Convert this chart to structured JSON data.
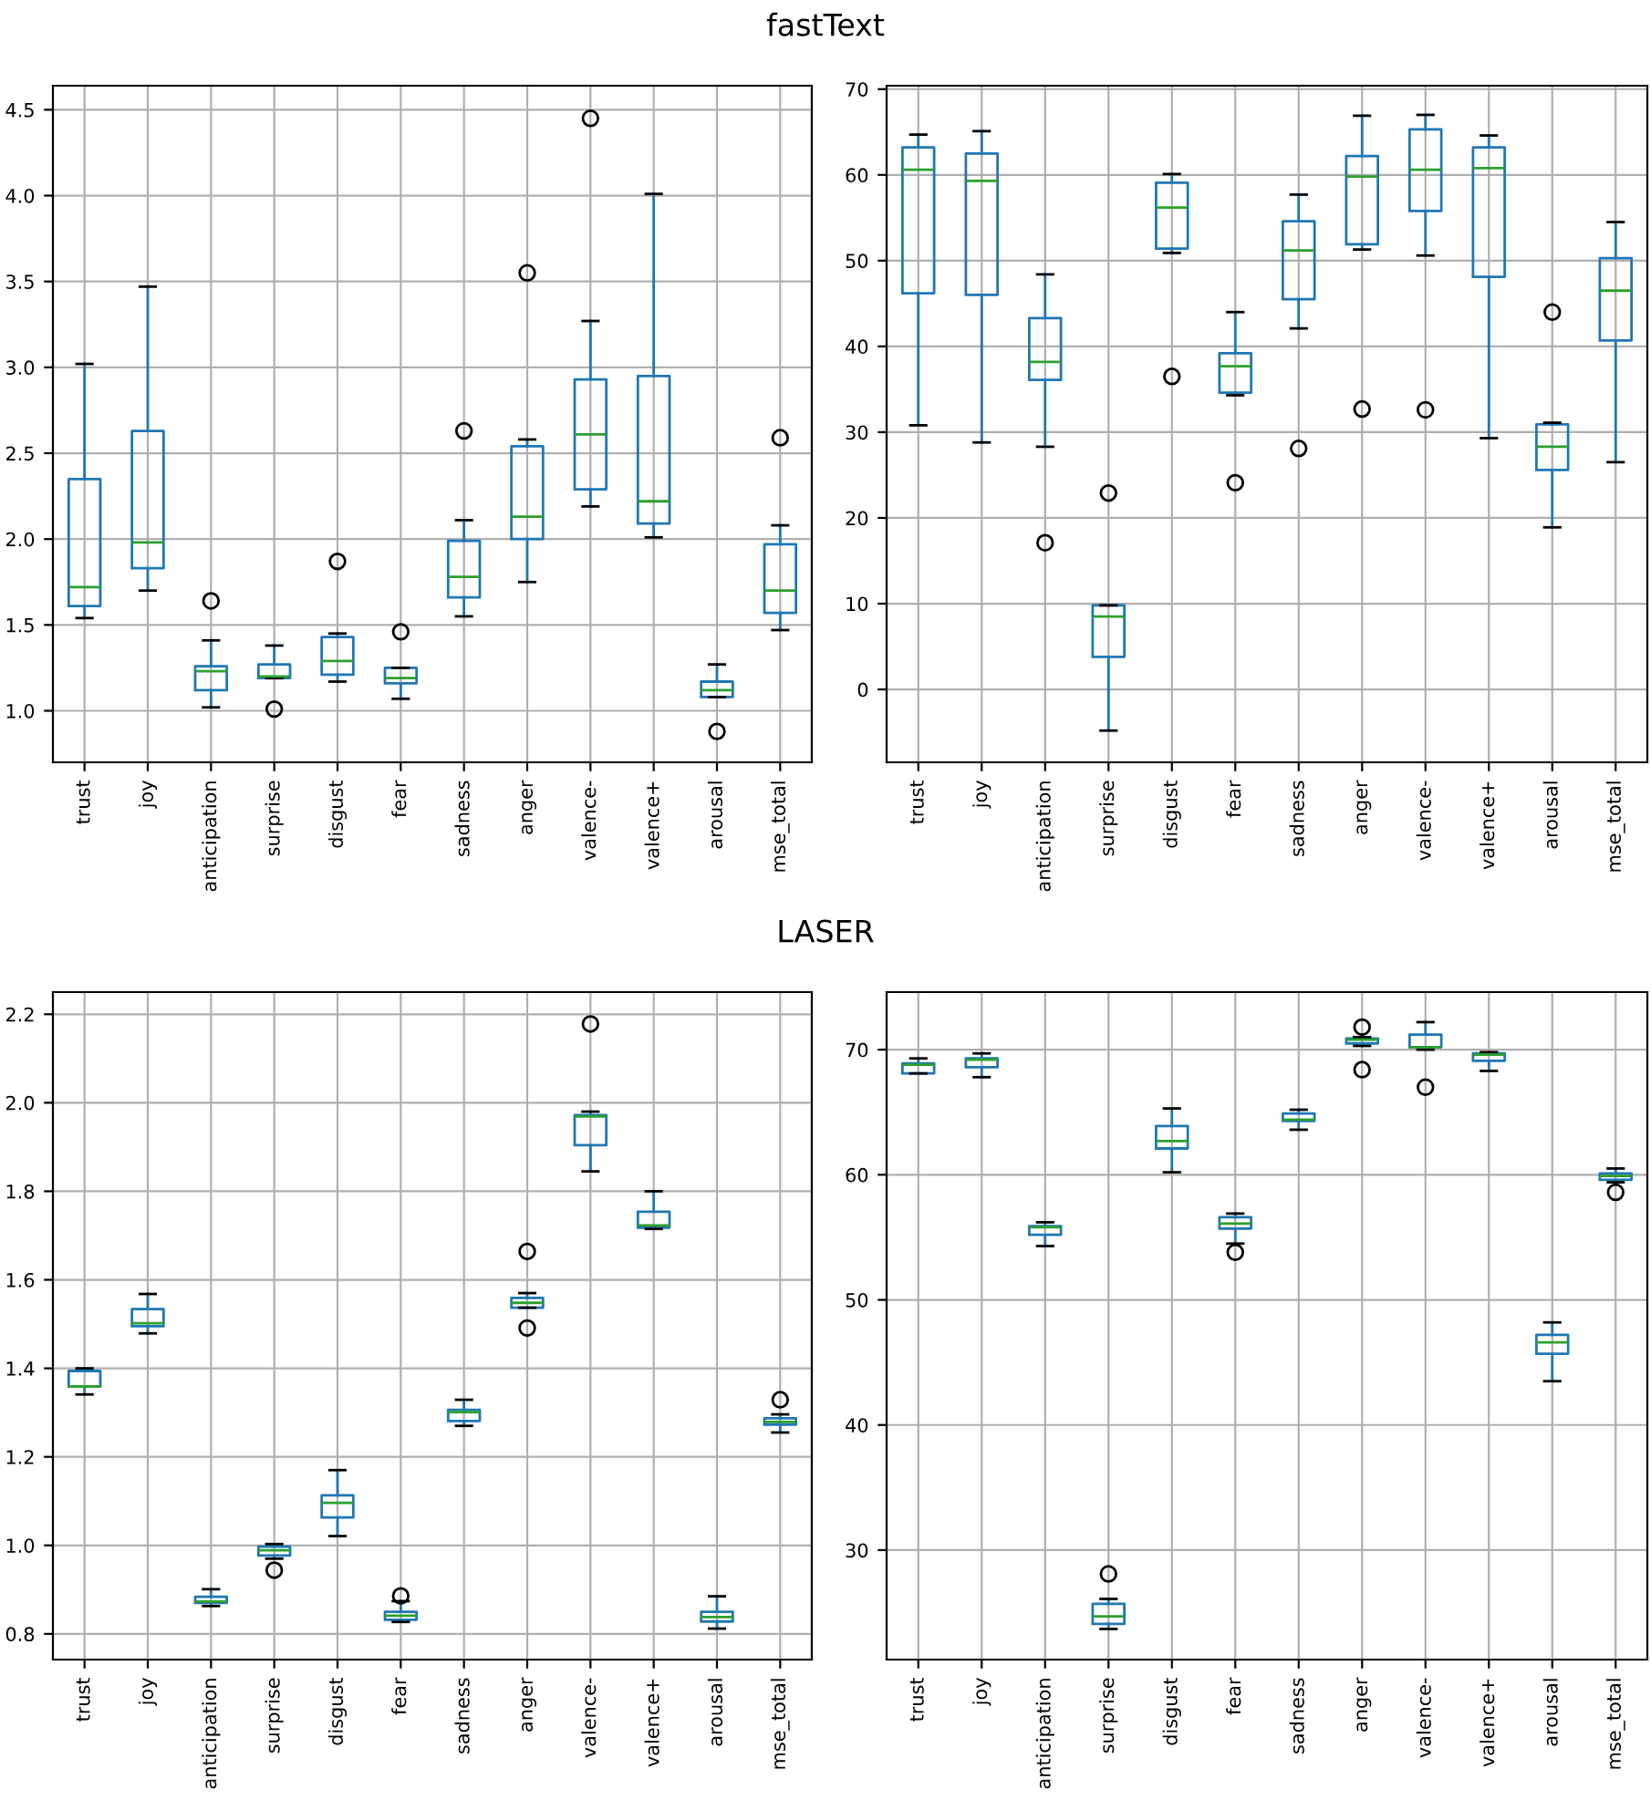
{
  "chart_data": [
    {
      "type": "box",
      "title": "fastText",
      "categories": [
        "trust",
        "joy",
        "anticipation",
        "surprise",
        "disgust",
        "fear",
        "sadness",
        "anger",
        "valence-",
        "valence+",
        "arousal",
        "mse_total"
      ],
      "ylim": [
        0.7,
        4.64
      ],
      "yticks": [
        {
          "value": 1.0,
          "label": "1.0"
        },
        {
          "value": 1.5,
          "label": "1.5"
        },
        {
          "value": 2.0,
          "label": "2.0"
        },
        {
          "value": 2.5,
          "label": "2.5"
        },
        {
          "value": 3.0,
          "label": "3.0"
        },
        {
          "value": 3.5,
          "label": "3.5"
        },
        {
          "value": 4.0,
          "label": "4.0"
        },
        {
          "value": 4.5,
          "label": "4.5"
        }
      ],
      "grid": true,
      "series": [
        {
          "color": "#1f77b4",
          "boxes": [
            {
              "low": 1.54,
              "q1": 1.61,
              "median": 1.72,
              "q3": 2.35,
              "high": 3.02
            },
            {
              "low": 1.7,
              "q1": 1.83,
              "median": 1.98,
              "q3": 2.63,
              "high": 3.47
            },
            {
              "low": 1.02,
              "q1": 1.12,
              "median": 1.23,
              "q3": 1.26,
              "high": 1.41,
              "outliers": [
                1.64
              ]
            },
            {
              "low": 1.19,
              "q1": 1.19,
              "median": 1.2,
              "q3": 1.27,
              "high": 1.38,
              "outliers": [
                1.01
              ]
            },
            {
              "low": 1.17,
              "q1": 1.21,
              "median": 1.29,
              "q3": 1.43,
              "high": 1.45,
              "outliers": [
                1.87
              ]
            },
            {
              "low": 1.07,
              "q1": 1.16,
              "median": 1.19,
              "q3": 1.25,
              "high": 1.25,
              "outliers": [
                1.46
              ]
            },
            {
              "low": 1.55,
              "q1": 1.66,
              "median": 1.78,
              "q3": 1.99,
              "high": 2.11,
              "outliers": [
                2.63
              ]
            },
            {
              "low": 1.75,
              "q1": 2.0,
              "median": 2.13,
              "q3": 2.54,
              "high": 2.58,
              "outliers": [
                3.55
              ]
            },
            {
              "low": 2.19,
              "q1": 2.29,
              "median": 2.61,
              "q3": 2.93,
              "high": 3.27,
              "outliers": [
                4.45
              ]
            },
            {
              "low": 2.01,
              "q1": 2.09,
              "median": 2.22,
              "q3": 2.95,
              "high": 4.01
            },
            {
              "low": 1.08,
              "q1": 1.08,
              "median": 1.12,
              "q3": 1.17,
              "high": 1.27,
              "outliers": [
                0.88
              ]
            },
            {
              "low": 1.47,
              "q1": 1.57,
              "median": 1.7,
              "q3": 1.97,
              "high": 2.08,
              "outliers": [
                2.59
              ]
            }
          ]
        }
      ]
    },
    {
      "type": "box",
      "categories": [
        "trust",
        "joy",
        "anticipation",
        "surprise",
        "disgust",
        "fear",
        "sadness",
        "anger",
        "valence-",
        "valence+",
        "arousal",
        "mse_total"
      ],
      "ylim": [
        -8.5,
        70.4
      ],
      "yticks": [
        0,
        10,
        20,
        30,
        40,
        50,
        60,
        70
      ],
      "grid": true,
      "series": [
        {
          "color": "#1f77b4",
          "boxes": [
            {
              "low": 30.8,
              "q1": 46.2,
              "median": 60.6,
              "q3": 63.2,
              "high": 64.7
            },
            {
              "low": 28.8,
              "q1": 46.0,
              "median": 59.3,
              "q3": 62.5,
              "high": 65.1
            },
            {
              "low": 28.3,
              "q1": 36.1,
              "median": 38.2,
              "q3": 43.3,
              "high": 48.4,
              "outliers": [
                17.1
              ]
            },
            {
              "low": -4.8,
              "q1": 3.8,
              "median": 8.5,
              "q3": 9.8,
              "high": 9.8,
              "outliers": [
                22.9
              ]
            },
            {
              "low": 50.9,
              "q1": 51.4,
              "median": 56.2,
              "q3": 59.1,
              "high": 60.1,
              "outliers": [
                36.5
              ]
            },
            {
              "low": 34.3,
              "q1": 34.6,
              "median": 37.7,
              "q3": 39.2,
              "high": 44.0,
              "outliers": [
                24.1
              ]
            },
            {
              "low": 42.1,
              "q1": 45.5,
              "median": 51.2,
              "q3": 54.6,
              "high": 57.7,
              "outliers": [
                28.1
              ]
            },
            {
              "low": 51.3,
              "q1": 51.9,
              "median": 59.8,
              "q3": 62.2,
              "high": 66.9,
              "outliers": [
                32.7
              ]
            },
            {
              "low": 50.6,
              "q1": 55.8,
              "median": 60.6,
              "q3": 65.3,
              "high": 67.0,
              "outliers": [
                32.6
              ]
            },
            {
              "low": 29.3,
              "q1": 48.1,
              "median": 60.8,
              "q3": 63.2,
              "high": 64.6
            },
            {
              "low": 18.9,
              "q1": 25.6,
              "median": 28.3,
              "q3": 30.9,
              "high": 31.1,
              "outliers": [
                44.0
              ]
            },
            {
              "low": 26.5,
              "q1": 40.7,
              "median": 46.5,
              "q3": 50.3,
              "high": 54.5
            }
          ]
        }
      ]
    },
    {
      "type": "box",
      "title": "LASER",
      "categories": [
        "trust",
        "joy",
        "anticipation",
        "surprise",
        "disgust",
        "fear",
        "sadness",
        "anger",
        "valence-",
        "valence+",
        "arousal",
        "mse_total"
      ],
      "ylim": [
        0.742,
        2.25
      ],
      "yticks": [
        {
          "value": 0.8,
          "label": "0.8"
        },
        {
          "value": 1.0,
          "label": "1.0"
        },
        {
          "value": 1.2,
          "label": "1.2"
        },
        {
          "value": 1.4,
          "label": "1.4"
        },
        {
          "value": 1.6,
          "label": "1.6"
        },
        {
          "value": 1.8,
          "label": "1.8"
        },
        {
          "value": 2.0,
          "label": "2.0"
        },
        {
          "value": 2.2,
          "label": "2.2"
        }
      ],
      "grid": true,
      "series": [
        {
          "color": "#1f77b4",
          "boxes": [
            {
              "low": 1.341,
              "q1": 1.359,
              "median": 1.359,
              "q3": 1.394,
              "high": 1.4
            },
            {
              "low": 1.479,
              "q1": 1.495,
              "median": 1.502,
              "q3": 1.534,
              "high": 1.568
            },
            {
              "low": 0.863,
              "q1": 0.87,
              "median": 0.873,
              "q3": 0.884,
              "high": 0.901
            },
            {
              "low": 0.97,
              "q1": 0.977,
              "median": 0.989,
              "q3": 0.997,
              "high": 1.003,
              "outliers": [
                0.944
              ]
            },
            {
              "low": 1.021,
              "q1": 1.063,
              "median": 1.096,
              "q3": 1.113,
              "high": 1.17
            },
            {
              "low": 0.827,
              "q1": 0.832,
              "median": 0.841,
              "q3": 0.85,
              "high": 0.874,
              "outliers": [
                0.886
              ]
            },
            {
              "low": 1.27,
              "q1": 1.281,
              "median": 1.301,
              "q3": 1.306,
              "high": 1.329
            },
            {
              "low": 1.537,
              "q1": 1.537,
              "median": 1.548,
              "q3": 1.559,
              "high": 1.57,
              "outliers": [
                1.664,
                1.491
              ]
            },
            {
              "low": 1.845,
              "q1": 1.904,
              "median": 1.969,
              "q3": 1.972,
              "high": 1.98,
              "outliers": [
                2.178
              ]
            },
            {
              "low": 1.715,
              "q1": 1.718,
              "median": 1.723,
              "q3": 1.754,
              "high": 1.8
            },
            {
              "low": 0.812,
              "q1": 0.828,
              "median": 0.838,
              "q3": 0.85,
              "high": 0.885
            },
            {
              "low": 1.255,
              "q1": 1.273,
              "median": 1.279,
              "q3": 1.287,
              "high": 1.296,
              "outliers": [
                1.329
              ]
            }
          ]
        }
      ]
    },
    {
      "type": "box",
      "categories": [
        "trust",
        "joy",
        "anticipation",
        "surprise",
        "disgust",
        "fear",
        "sadness",
        "anger",
        "valence-",
        "valence+",
        "arousal",
        "mse_total"
      ],
      "ylim": [
        21.25,
        74.6
      ],
      "yticks": [
        30,
        40,
        50,
        60,
        70
      ],
      "grid": true,
      "series": [
        {
          "color": "#1f77b4",
          "boxes": [
            {
              "low": 68.1,
              "q1": 68.1,
              "median": 68.8,
              "q3": 68.9,
              "high": 69.3
            },
            {
              "low": 67.8,
              "q1": 68.6,
              "median": 69.2,
              "q3": 69.3,
              "high": 69.7
            },
            {
              "low": 54.3,
              "q1": 55.2,
              "median": 55.8,
              "q3": 55.9,
              "high": 56.2
            },
            {
              "low": 23.7,
              "q1": 24.1,
              "median": 24.7,
              "q3": 25.7,
              "high": 26.1,
              "outliers": [
                28.1
              ]
            },
            {
              "low": 60.2,
              "q1": 62.1,
              "median": 62.7,
              "q3": 63.9,
              "high": 65.3
            },
            {
              "low": 54.5,
              "q1": 55.7,
              "median": 56.1,
              "q3": 56.6,
              "high": 56.9,
              "outliers": [
                53.8
              ]
            },
            {
              "low": 63.6,
              "q1": 64.3,
              "median": 64.4,
              "q3": 64.9,
              "high": 65.2
            },
            {
              "low": 70.3,
              "q1": 70.5,
              "median": 70.8,
              "q3": 70.9,
              "high": 71.0,
              "outliers": [
                71.8,
                68.4
              ]
            },
            {
              "low": 70.0,
              "q1": 70.2,
              "median": 70.2,
              "q3": 71.2,
              "high": 72.2,
              "outliers": [
                67.0
              ]
            },
            {
              "low": 68.3,
              "q1": 69.1,
              "median": 69.6,
              "q3": 69.7,
              "high": 69.8
            },
            {
              "low": 43.5,
              "q1": 45.7,
              "median": 46.6,
              "q3": 47.2,
              "high": 48.2
            },
            {
              "low": 59.4,
              "q1": 59.6,
              "median": 59.9,
              "q3": 60.1,
              "high": 60.5,
              "outliers": [
                58.6
              ]
            }
          ]
        }
      ]
    }
  ]
}
